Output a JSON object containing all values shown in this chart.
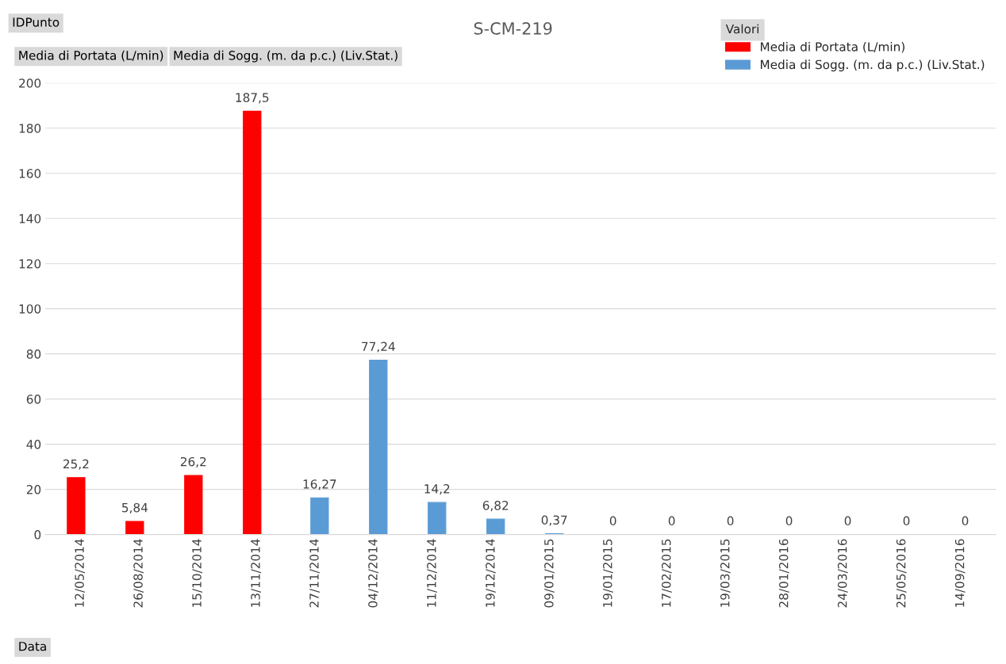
{
  "chart_data": {
    "type": "bar",
    "title": "S-CM-219",
    "legend_title": "Valori",
    "legend": "top right",
    "grid": "y",
    "categories": [
      "12/05/2014",
      "26/08/2014",
      "15/10/2014",
      "13/11/2014",
      "27/11/2014",
      "04/12/2014",
      "11/12/2014",
      "19/12/2014",
      "09/01/2015",
      "19/01/2015",
      "17/02/2015",
      "19/03/2015",
      "28/01/2016",
      "24/03/2016",
      "25/05/2016",
      "14/09/2016"
    ],
    "series": [
      {
        "name": "Media di Portata (L/min)",
        "color": "#ff0000",
        "values": [
          25.2,
          5.84,
          26.2,
          187.5,
          null,
          null,
          null,
          null,
          null,
          null,
          null,
          null,
          null,
          null,
          null,
          null
        ],
        "value_labels": [
          "25,2",
          "5,84",
          "26,2",
          "187,5",
          null,
          null,
          null,
          null,
          null,
          null,
          null,
          null,
          null,
          null,
          null,
          null
        ]
      },
      {
        "name": "Media di Sogg. (m. da p.c.) (Liv.Stat.)",
        "color": "#5b9bd5",
        "values": [
          null,
          null,
          null,
          null,
          16.27,
          77.24,
          14.2,
          6.82,
          0.37,
          0,
          0,
          0,
          0,
          0,
          0,
          0
        ],
        "value_labels": [
          null,
          null,
          null,
          null,
          "16,27",
          "77,24",
          "14,2",
          "6,82",
          "0,37",
          "0",
          "0",
          "0",
          "0",
          "0",
          "0",
          "0"
        ]
      }
    ],
    "ylim": [
      0,
      200
    ],
    "yticks": [
      0,
      20,
      40,
      60,
      80,
      100,
      120,
      140,
      160,
      180,
      200
    ],
    "annotations": [
      "IDPunto",
      "Media di Portata (L/min)",
      "Media di Sogg. (m. da p.c.) (Liv.Stat.)",
      "Data"
    ]
  }
}
